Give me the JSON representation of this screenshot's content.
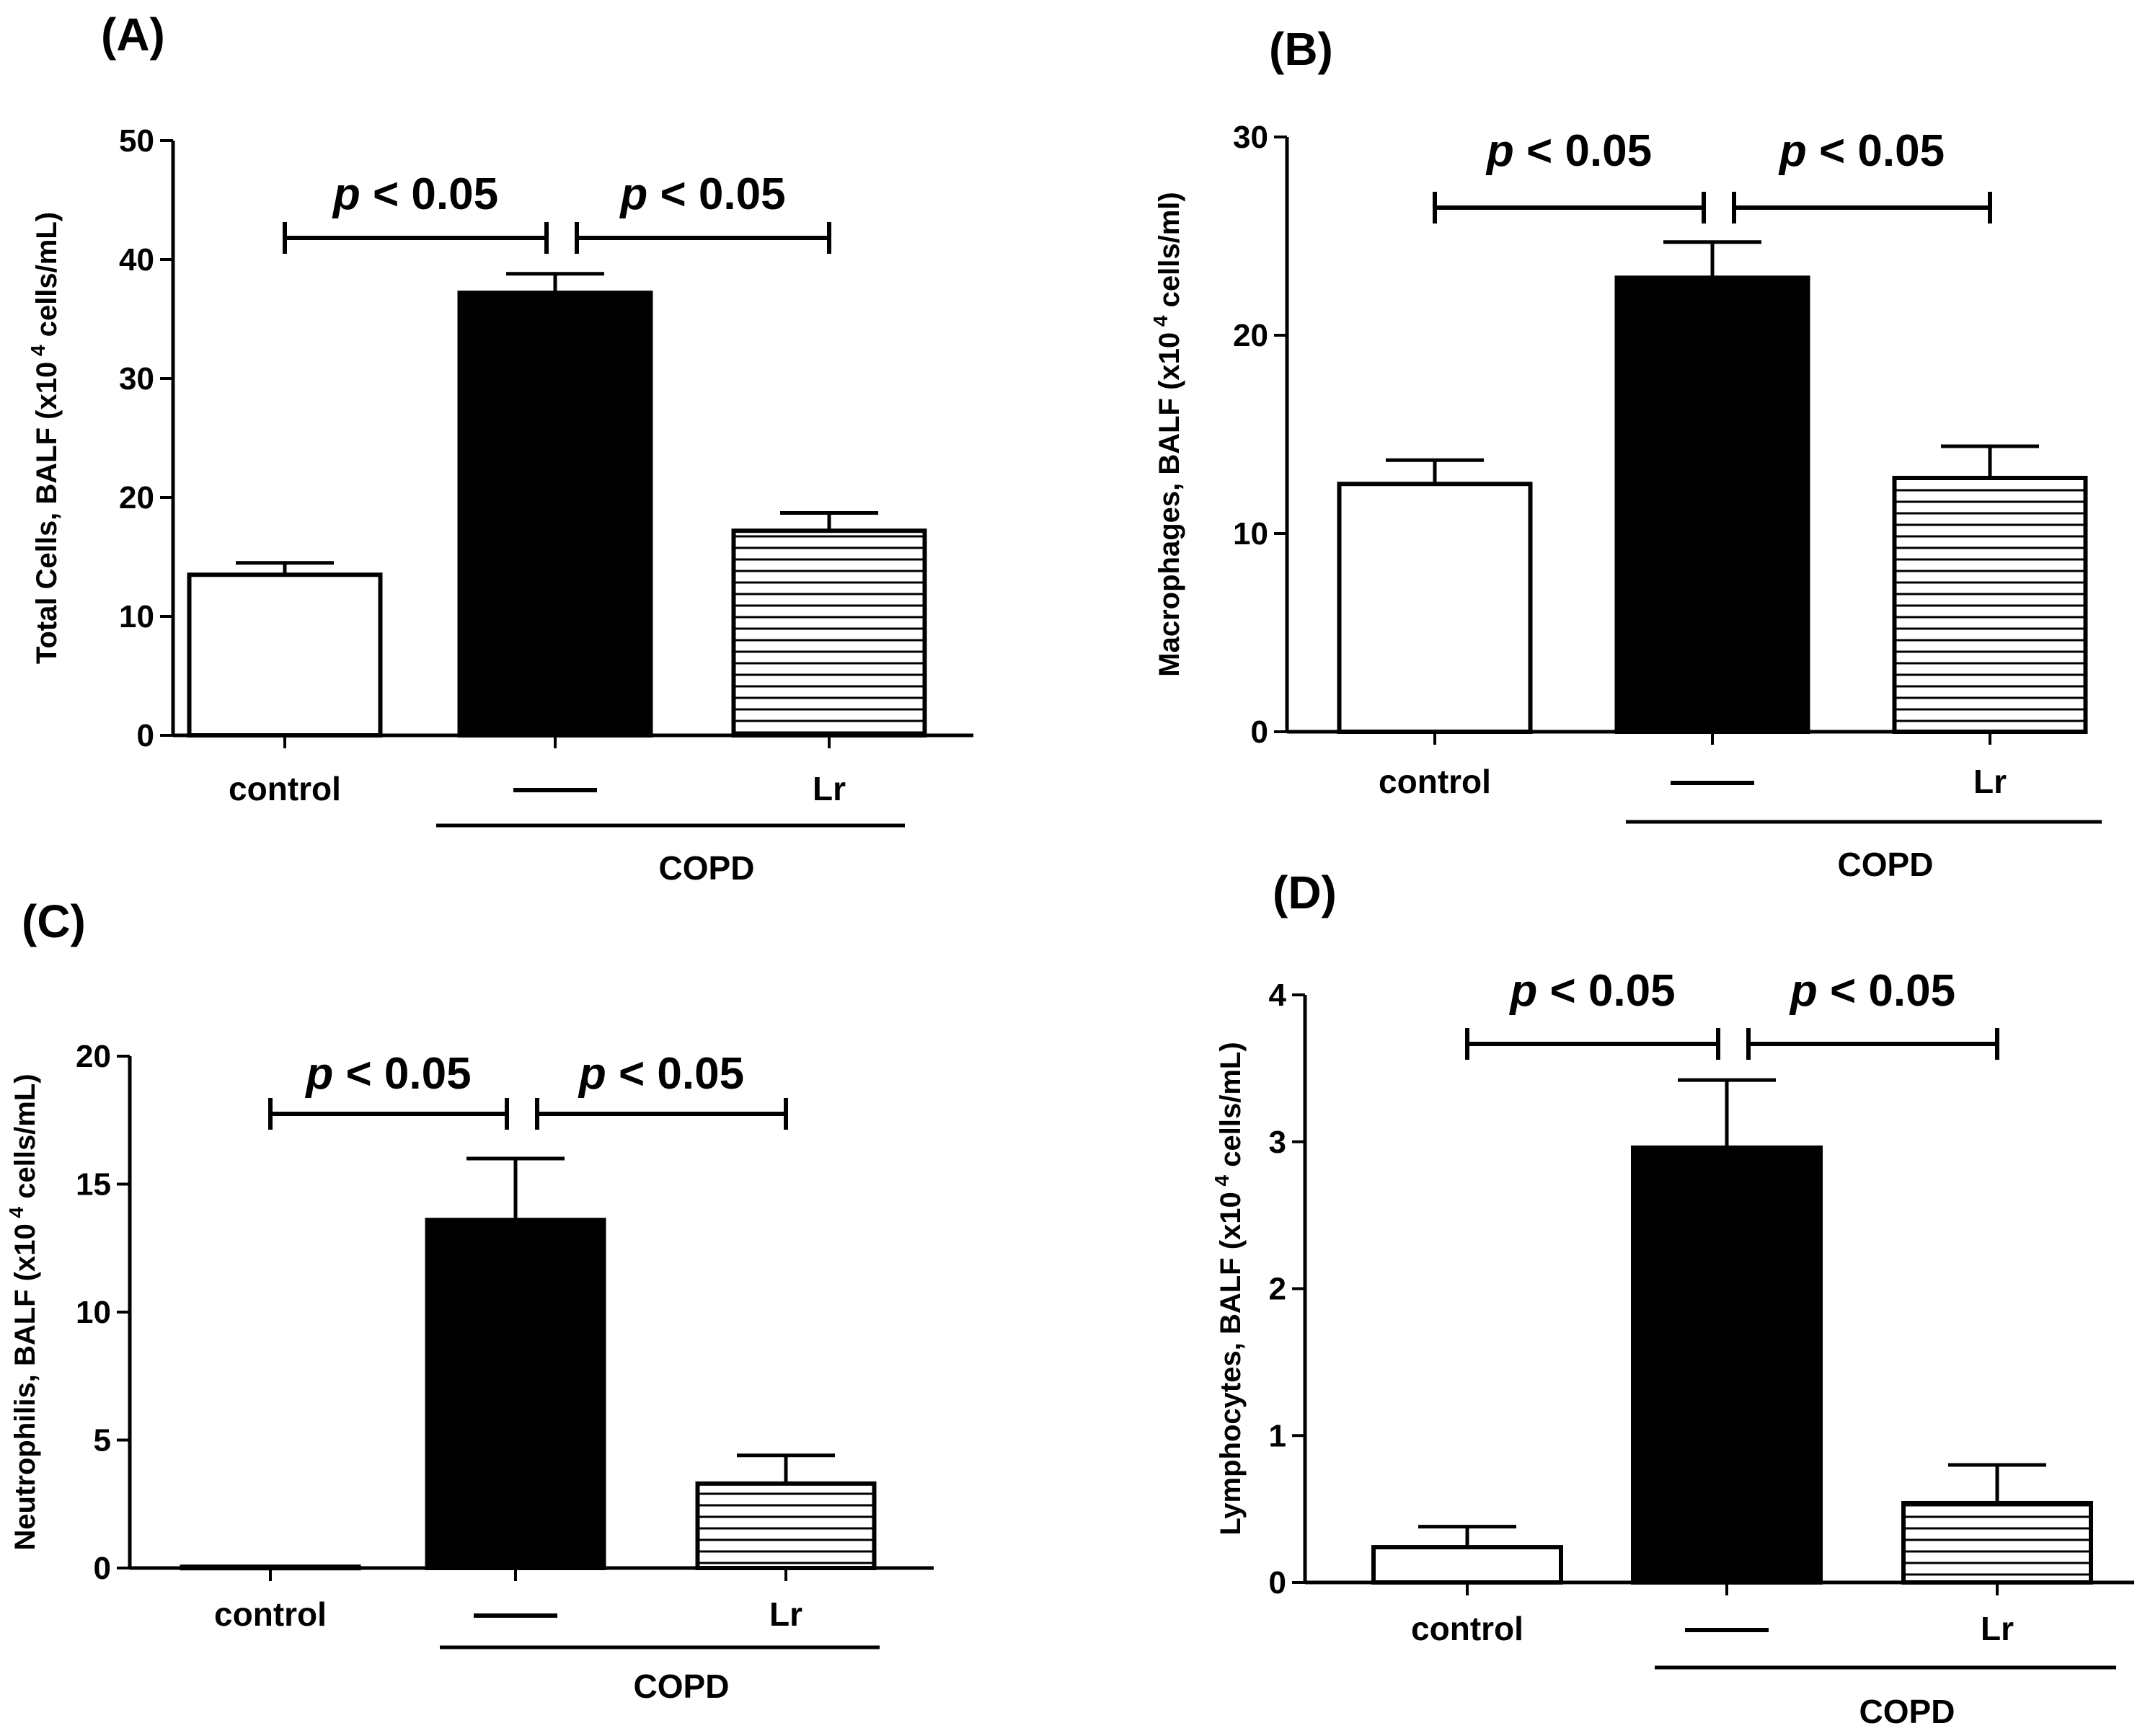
{
  "colors": {
    "ink": "#000000",
    "white_fill": "#ffffff",
    "black_fill": "#000000"
  },
  "chart_data": [
    {
      "panel": "(A)",
      "type": "bar",
      "ylabel_main": "Total Cells, BALF (x10",
      "ylabel_exp": "4",
      "ylabel_unit": "cells/mL)",
      "ylim": [
        0,
        50
      ],
      "yticks": [
        0,
        10,
        20,
        30,
        40,
        50
      ],
      "tick_labels": [
        "0",
        "10",
        "20",
        "30",
        "40",
        "50"
      ],
      "categories": [
        "control",
        "—",
        "Lr"
      ],
      "fills": [
        "white",
        "black",
        "striped"
      ],
      "values": [
        13.5,
        37.2,
        17.2
      ],
      "errors": [
        1.0,
        1.6,
        1.5
      ],
      "group_label": "COPD",
      "significance": [
        {
          "from": 0,
          "to": 1,
          "italic": "p",
          "text": " < 0.05"
        },
        {
          "from": 1,
          "to": 2,
          "italic": "p",
          "text": " < 0.05"
        }
      ]
    },
    {
      "panel": "(B)",
      "type": "bar",
      "ylabel_main": "Macrophages, BALF (x10",
      "ylabel_exp": "4",
      "ylabel_unit": "cells/ml)",
      "ylim": [
        0,
        30
      ],
      "yticks": [
        0,
        10,
        20,
        30
      ],
      "tick_labels": [
        "0",
        "10",
        "20",
        "30"
      ],
      "categories": [
        "control",
        "—",
        "Lr"
      ],
      "fills": [
        "white",
        "black",
        "striped"
      ],
      "values": [
        12.5,
        22.9,
        12.8
      ],
      "errors": [
        1.2,
        1.8,
        1.6
      ],
      "group_label": "COPD",
      "significance": [
        {
          "from": 0,
          "to": 1,
          "italic": "p",
          "text": " < 0.05"
        },
        {
          "from": 1,
          "to": 2,
          "italic": "p",
          "text": " < 0.05"
        }
      ]
    },
    {
      "panel": "(C)",
      "type": "bar",
      "ylabel_main": "Neutrophilis, BALF (x10",
      "ylabel_exp": "4",
      "ylabel_unit": "cells/mL)",
      "ylim": [
        0,
        20
      ],
      "yticks": [
        0,
        5,
        10,
        15,
        20
      ],
      "tick_labels": [
        "0",
        "5",
        "10",
        "15",
        "20"
      ],
      "categories": [
        "control",
        "—",
        "Lr"
      ],
      "fills": [
        "white",
        "black",
        "striped"
      ],
      "values": [
        0.05,
        13.6,
        3.3
      ],
      "errors": [
        0,
        2.4,
        1.1
      ],
      "group_label": "COPD",
      "significance": [
        {
          "from": 0,
          "to": 1,
          "italic": "p",
          "text": " < 0.05"
        },
        {
          "from": 1,
          "to": 2,
          "italic": "p",
          "text": " < 0.05"
        }
      ]
    },
    {
      "panel": "(D)",
      "type": "bar",
      "ylabel_main": "Lymphocytes, BALF (x10",
      "ylabel_exp": "4",
      "ylabel_unit": "cells/mL)",
      "ylim": [
        0,
        4
      ],
      "yticks": [
        0,
        1,
        2,
        3,
        4
      ],
      "tick_labels": [
        "0",
        "1",
        "2",
        "3",
        "4"
      ],
      "categories": [
        "control",
        "—",
        "Lr"
      ],
      "fills": [
        "white",
        "black",
        "striped"
      ],
      "values": [
        0.24,
        2.96,
        0.54
      ],
      "errors": [
        0.14,
        0.46,
        0.26
      ],
      "group_label": "COPD",
      "significance": [
        {
          "from": 0,
          "to": 1,
          "italic": "p",
          "text": " < 0.05"
        },
        {
          "from": 1,
          "to": 2,
          "italic": "p",
          "text": " < 0.05"
        }
      ]
    }
  ]
}
